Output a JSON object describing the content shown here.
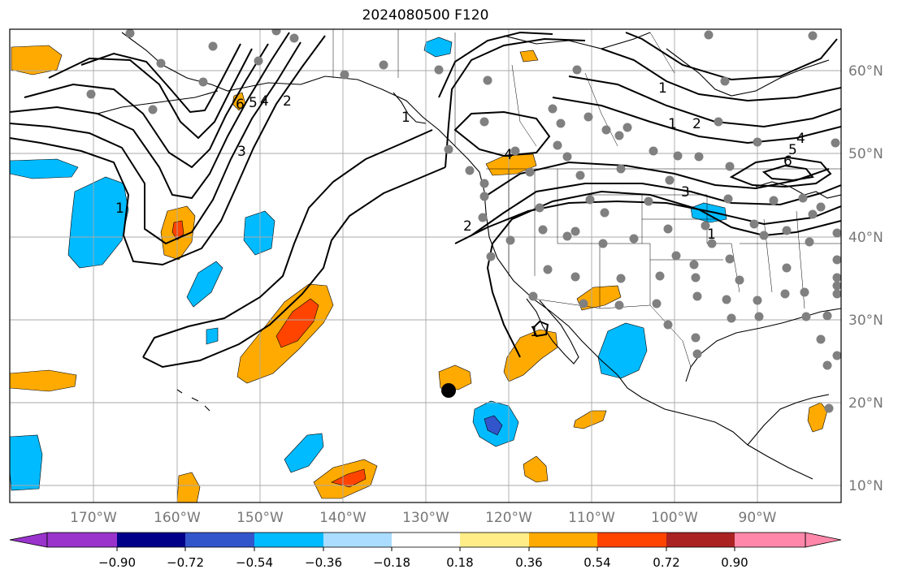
{
  "title": "2024080500 F120",
  "lon_labels": [
    "170°W",
    "160°W",
    "150°W",
    "140°W",
    "130°W",
    "120°W",
    "110°W",
    "100°W",
    "90°W"
  ],
  "lat_labels": [
    "60°N",
    "50°N",
    "40°N",
    "30°N",
    "20°N",
    "10°N"
  ],
  "colorbar": {
    "ticks": [
      "−0.90",
      "−0.72",
      "−0.54",
      "−0.36",
      "−0.18",
      "0.18",
      "0.36",
      "0.54",
      "0.72",
      "0.90"
    ],
    "colors": [
      "#9933cc",
      "#000088",
      "#3355cc",
      "#00bbff",
      "#aaddff",
      "#ffffff",
      "#ffee88",
      "#ffaa00",
      "#ff4400",
      "#aa2222",
      "#ff88aa"
    ]
  },
  "contour_labels": [
    "1",
    "2",
    "3",
    "4",
    "5",
    "6"
  ],
  "fill_colors": {
    "orange": "#ffaa00",
    "red": "#ff4400",
    "cyan": "#00bbff",
    "blue": "#3355cc",
    "yellow": "#ffee88"
  },
  "station_color": "#808080",
  "marker_color": "#000000"
}
